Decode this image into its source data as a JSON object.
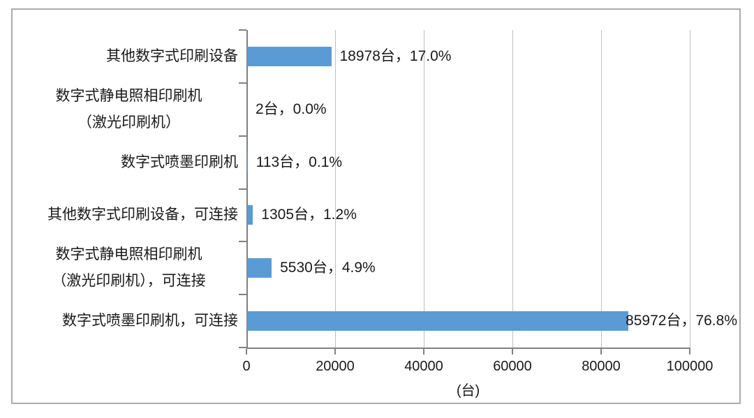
{
  "chart_data": {
    "type": "bar",
    "orientation": "horizontal",
    "title": "",
    "xlabel": "(台)",
    "ylabel": "",
    "xlim": [
      0,
      100000
    ],
    "grid": "vertical",
    "legend": "none",
    "bar_color": "#5B9BD5",
    "x_ticks": [
      {
        "value": 0,
        "label": "0"
      },
      {
        "value": 20000,
        "label": "20000"
      },
      {
        "value": 40000,
        "label": "40000"
      },
      {
        "value": 60000,
        "label": "60000"
      },
      {
        "value": 80000,
        "label": "80000"
      },
      {
        "value": 100000,
        "label": "100000"
      }
    ],
    "rows": [
      {
        "category_lines": [
          "其他数字式印刷设备"
        ],
        "value": 18978,
        "data_label": "18978台，17.0%"
      },
      {
        "category_lines": [
          "数字式静电照相印刷机",
          "（激光印刷机）"
        ],
        "value": 2,
        "data_label": "2台，0.0%"
      },
      {
        "category_lines": [
          "数字式喷墨印刷机"
        ],
        "value": 113,
        "data_label": "113台，0.1%"
      },
      {
        "category_lines": [
          "其他数字式印刷设备，可连接"
        ],
        "value": 1305,
        "data_label": "1305台，1.2%"
      },
      {
        "category_lines": [
          "数字式静电照相印刷机",
          "（激光印刷机），可连接"
        ],
        "value": 5530,
        "data_label": "5530台，4.9%"
      },
      {
        "category_lines": [
          "数字式喷墨印刷机，可连接"
        ],
        "value": 85972,
        "data_label": "85972台，76.8%"
      }
    ],
    "colors": {
      "axis": "#808080",
      "gridline": "#bfbfbf",
      "text": "#1a1a1a",
      "frame_border": "#ababab",
      "background": "#ffffff"
    }
  }
}
